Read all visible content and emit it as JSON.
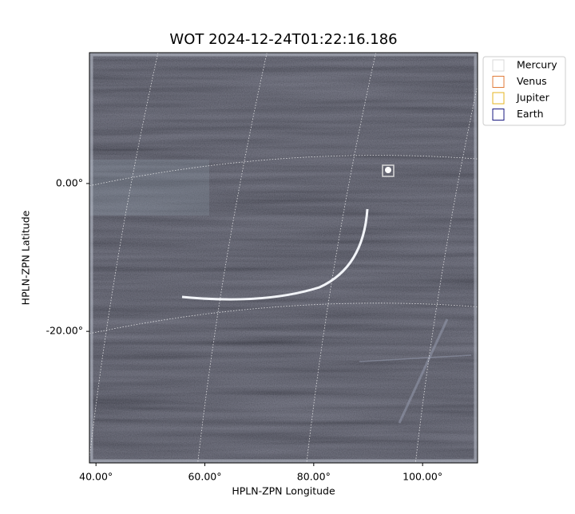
{
  "chart_data": {
    "type": "image",
    "title": "WOT 2024-12-24T01:22:16.186",
    "x_label": "HPLN-ZPN Longitude",
    "y_label": "HPLN-ZPN Latitude",
    "xlim": [
      38.8,
      110.1
    ],
    "ylim": [
      -37.8,
      17.7
    ],
    "xticks": [
      {
        "value": 40,
        "label": "40.00°"
      },
      {
        "value": 60,
        "label": "60.00°"
      },
      {
        "value": 80,
        "label": "80.00°"
      },
      {
        "value": 100,
        "label": "100.00°"
      }
    ],
    "yticks": [
      {
        "value": -20,
        "label": "-20.00°"
      },
      {
        "value": 0,
        "label": "0.00°"
      }
    ],
    "grid": true,
    "legend": "upper right",
    "series": [
      {
        "name": "Mercury",
        "color": "#d9d9d9"
      },
      {
        "name": "Venus",
        "color": "#e07b39"
      },
      {
        "name": "Jupiter",
        "color": "#e6b422"
      },
      {
        "name": "Earth",
        "color": "#1a1a80"
      }
    ]
  }
}
